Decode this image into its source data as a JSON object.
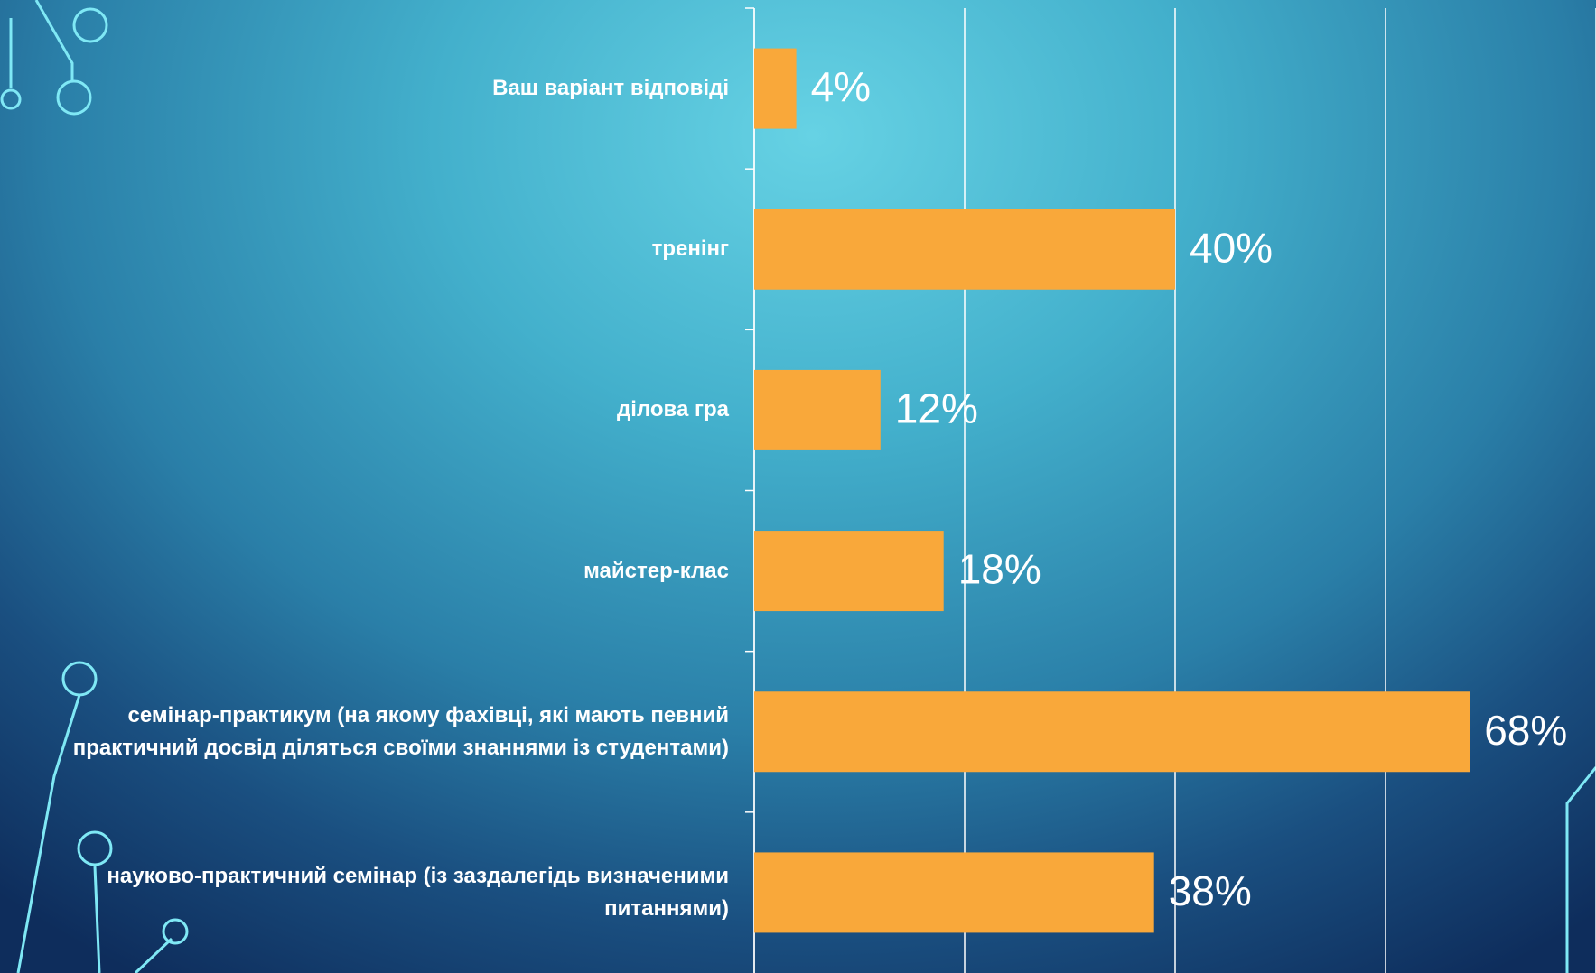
{
  "chart_data": {
    "type": "barh",
    "categories": [
      "Ваш варіант відповіді",
      "тренінг",
      "ділова гра",
      "майстер-клас",
      "семінар-практикум (на якому фахівці, які мають певний практичний досвід діляться своїми знаннями із студентами)",
      "науково-практичний семінар (із заздалегідь визначеними питаннями)"
    ],
    "values": [
      4,
      40,
      12,
      18,
      68,
      38
    ],
    "value_labels": [
      "4%",
      "40%",
      "12%",
      "18%",
      "68%",
      "38%"
    ],
    "color": "#f9a83a",
    "xlim": [
      0,
      80
    ],
    "xticks": [
      0,
      20,
      40,
      60,
      80
    ],
    "grid": true
  }
}
